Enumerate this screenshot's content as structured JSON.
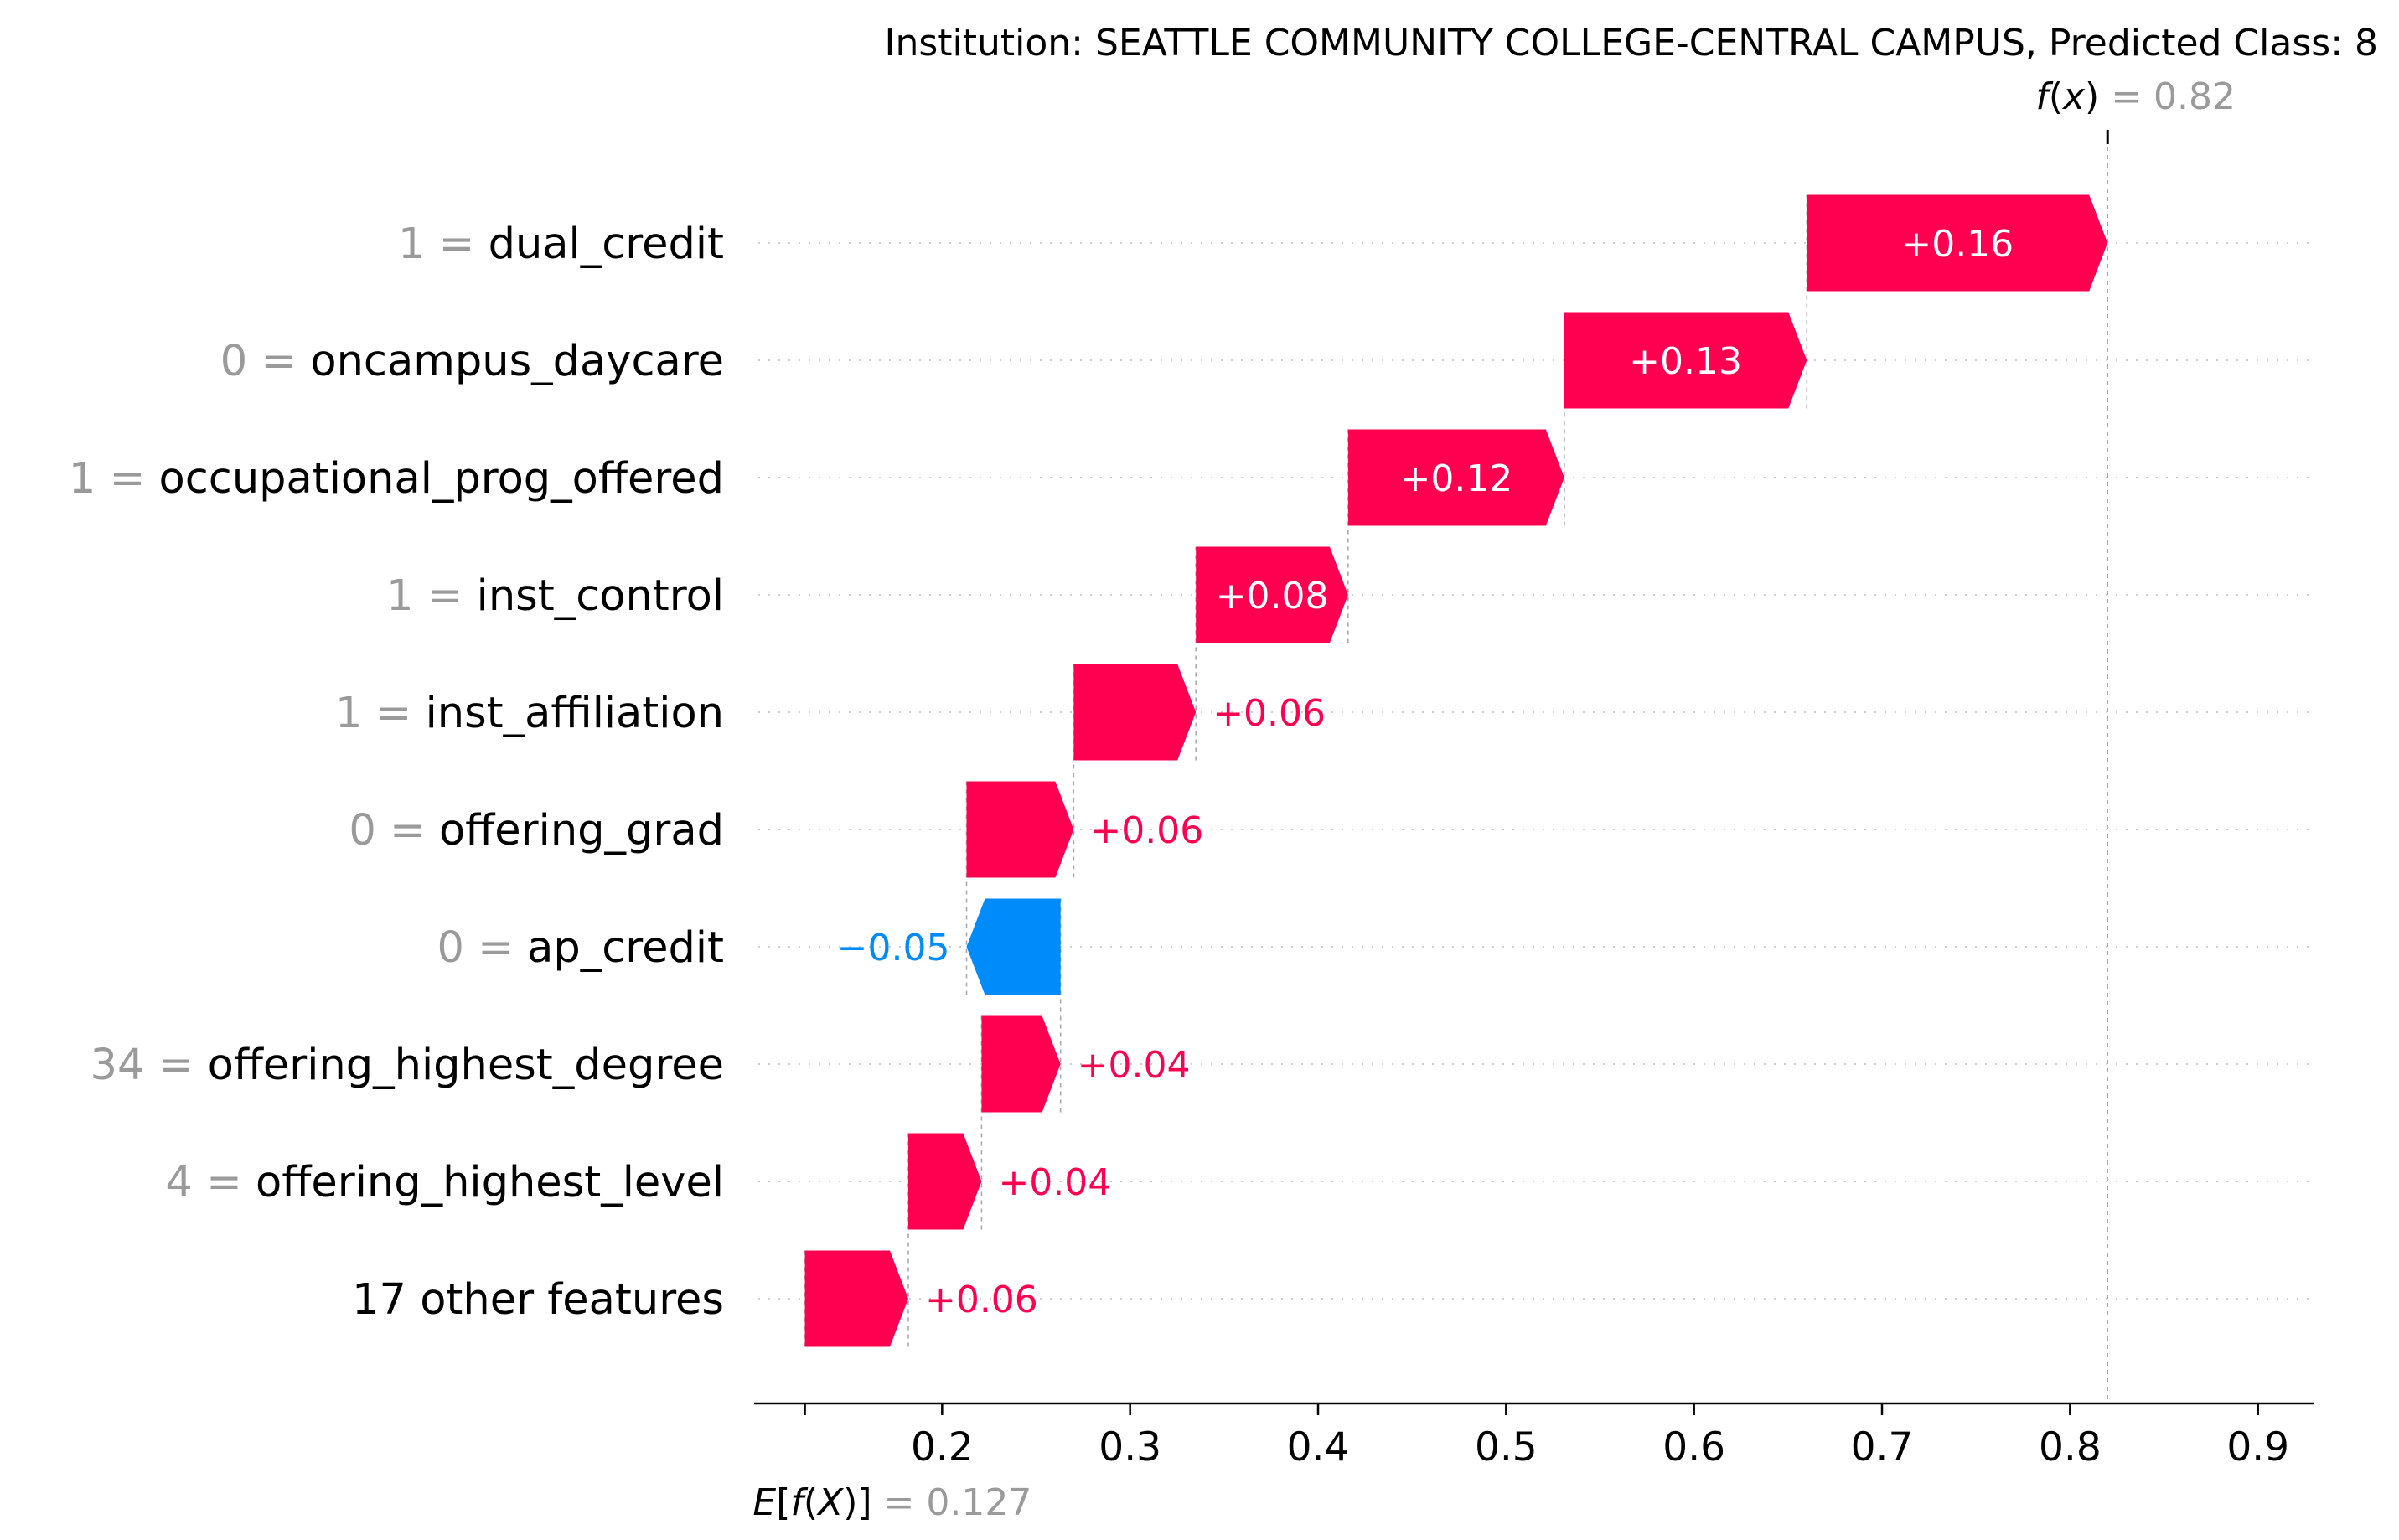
{
  "chart_data": {
    "type": "waterfall",
    "title": "Institution: SEATTLE COMMUNITY COLLEGE-CENTRAL CAMPUS, Predicted Class: 8",
    "base_value": 0.127,
    "base_label": "0.127",
    "fx_value": 0.82,
    "fx_label": "0.82",
    "xlim": [
      0.1,
      0.93
    ],
    "xticks": [
      0.2,
      0.3,
      0.4,
      0.5,
      0.6,
      0.7,
      0.8,
      0.9
    ],
    "xtick_labels": [
      "0.2",
      "0.3",
      "0.4",
      "0.5",
      "0.6",
      "0.7",
      "0.8",
      "0.9"
    ],
    "colors": {
      "positive": "#ff0051",
      "negative": "#008bfb"
    },
    "features": [
      {
        "value": "1",
        "name": "dual_credit",
        "contribution": 0.16,
        "label": "+0.16",
        "start": 0.66,
        "end": 0.82
      },
      {
        "value": "0",
        "name": "oncampus_daycare",
        "contribution": 0.13,
        "label": "+0.13",
        "start": 0.531,
        "end": 0.66
      },
      {
        "value": "1",
        "name": "occupational_prog_offered",
        "contribution": 0.12,
        "label": "+0.12",
        "start": 0.416,
        "end": 0.531
      },
      {
        "value": "1",
        "name": "inst_control",
        "contribution": 0.08,
        "label": "+0.08",
        "start": 0.335,
        "end": 0.416
      },
      {
        "value": "1",
        "name": "inst_affiliation",
        "contribution": 0.06,
        "label": "+0.06",
        "start": 0.27,
        "end": 0.335
      },
      {
        "value": "0",
        "name": "offering_grad",
        "contribution": 0.06,
        "label": "+0.06",
        "start": 0.213,
        "end": 0.27
      },
      {
        "value": "0",
        "name": "ap_credit",
        "contribution": -0.05,
        "label": "−0.05",
        "start": 0.263,
        "end": 0.213
      },
      {
        "value": "34",
        "name": "offering_highest_degree",
        "contribution": 0.04,
        "label": "+0.04",
        "start": 0.221,
        "end": 0.263
      },
      {
        "value": "4",
        "name": "offering_highest_level",
        "contribution": 0.04,
        "label": "+0.04",
        "start": 0.182,
        "end": 0.221
      },
      {
        "value": "",
        "name": "17 other features",
        "contribution": 0.06,
        "label": "+0.06",
        "start": 0.127,
        "end": 0.182
      }
    ]
  }
}
